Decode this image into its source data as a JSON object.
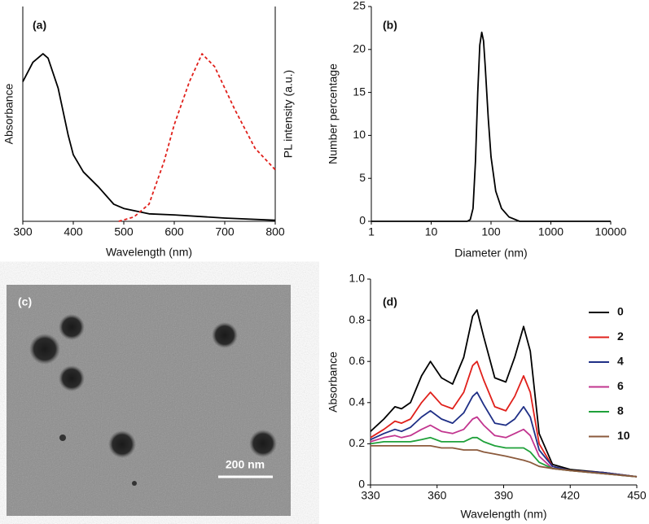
{
  "chart_data": [
    {
      "type": "line",
      "label": "(a)",
      "xlabel": "Wavelength (nm)",
      "ylabel": "Absorbance",
      "y2label": "PL intensity (a.u.)",
      "xlim": [
        300,
        800
      ],
      "xticks": [
        300,
        400,
        500,
        600,
        700,
        800
      ],
      "ylim": [
        0,
        1
      ],
      "y2lim": [
        0,
        1
      ],
      "series": [
        {
          "color": "#000000",
          "dash": "solid",
          "x": [
            300,
            320,
            340,
            350,
            370,
            390,
            400,
            420,
            450,
            480,
            500,
            550,
            600,
            700,
            800
          ],
          "values": [
            0.65,
            0.74,
            0.78,
            0.76,
            0.62,
            0.4,
            0.31,
            0.23,
            0.16,
            0.08,
            0.06,
            0.035,
            0.03,
            0.015,
            0.005
          ]
        },
        {
          "color": "#e0201b",
          "dash": "dashed",
          "axis": "y2",
          "x": [
            490,
            520,
            550,
            580,
            600,
            630,
            655,
            680,
            720,
            760,
            800
          ],
          "values": [
            0,
            0.02,
            0.08,
            0.28,
            0.45,
            0.65,
            0.78,
            0.72,
            0.52,
            0.34,
            0.24
          ]
        }
      ]
    },
    {
      "type": "line",
      "label": "(b)",
      "xlabel": "Diameter (nm)",
      "ylabel": "Number percentage",
      "xscale": "log",
      "xlim": [
        1,
        10000
      ],
      "xticks": [
        1,
        10,
        100,
        1000,
        10000
      ],
      "ylim": [
        0,
        25
      ],
      "yticks": [
        0,
        5,
        10,
        15,
        20,
        25
      ],
      "series": [
        {
          "color": "#000000",
          "dash": "solid",
          "x": [
            1,
            40,
            45,
            50,
            55,
            60,
            65,
            70,
            75,
            80,
            90,
            100,
            120,
            150,
            200,
            300,
            10000
          ],
          "values": [
            0,
            0,
            0.2,
            1.5,
            7,
            15,
            20.5,
            22,
            21,
            18,
            12,
            7.5,
            3.5,
            1.5,
            0.5,
            0,
            0
          ]
        }
      ]
    },
    {
      "type": "line",
      "label": "(d)",
      "xlabel": "Wavelength (nm)",
      "ylabel": "Absorbance",
      "legend": "right",
      "xlim": [
        330,
        450
      ],
      "xticks": [
        330,
        360,
        390,
        420,
        450
      ],
      "ylim": [
        0,
        1
      ],
      "yticks": [
        0,
        0.2,
        0.4,
        0.6,
        0.8,
        {
          "value": 1,
          "label": "1.0"
        }
      ],
      "x": [
        330,
        336,
        341,
        344,
        348,
        353,
        357,
        362,
        367,
        372,
        376,
        378,
        381,
        386,
        391,
        395,
        399,
        402,
        406,
        412,
        420,
        435,
        450
      ],
      "series": [
        {
          "name": "0",
          "color": "#000000",
          "values": [
            0.26,
            0.32,
            0.38,
            0.37,
            0.4,
            0.53,
            0.6,
            0.52,
            0.49,
            0.62,
            0.82,
            0.85,
            0.72,
            0.52,
            0.5,
            0.62,
            0.77,
            0.65,
            0.25,
            0.1,
            0.075,
            0.06,
            0.04
          ]
        },
        {
          "name": "2",
          "color": "#e0201b",
          "values": [
            0.23,
            0.27,
            0.31,
            0.3,
            0.32,
            0.4,
            0.45,
            0.39,
            0.37,
            0.45,
            0.58,
            0.6,
            0.51,
            0.38,
            0.36,
            0.43,
            0.53,
            0.45,
            0.2,
            0.09,
            0.07,
            0.06,
            0.04
          ]
        },
        {
          "name": "4",
          "color": "#1f2f86",
          "values": [
            0.22,
            0.25,
            0.27,
            0.26,
            0.28,
            0.33,
            0.36,
            0.32,
            0.3,
            0.35,
            0.43,
            0.45,
            0.39,
            0.3,
            0.29,
            0.32,
            0.38,
            0.33,
            0.17,
            0.09,
            0.07,
            0.06,
            0.04
          ]
        },
        {
          "name": "6",
          "color": "#c2358f",
          "values": [
            0.21,
            0.23,
            0.24,
            0.23,
            0.24,
            0.27,
            0.29,
            0.26,
            0.25,
            0.27,
            0.32,
            0.33,
            0.29,
            0.24,
            0.23,
            0.25,
            0.27,
            0.24,
            0.14,
            0.08,
            0.07,
            0.055,
            0.04
          ]
        },
        {
          "name": "8",
          "color": "#1fa13a",
          "values": [
            0.2,
            0.21,
            0.21,
            0.21,
            0.21,
            0.22,
            0.23,
            0.21,
            0.21,
            0.21,
            0.23,
            0.23,
            0.21,
            0.19,
            0.18,
            0.18,
            0.18,
            0.16,
            0.11,
            0.08,
            0.07,
            0.055,
            0.04
          ]
        },
        {
          "name": "10",
          "color": "#8b5a3c",
          "values": [
            0.19,
            0.19,
            0.19,
            0.19,
            0.19,
            0.19,
            0.19,
            0.18,
            0.18,
            0.17,
            0.17,
            0.17,
            0.16,
            0.15,
            0.14,
            0.13,
            0.12,
            0.11,
            0.09,
            0.08,
            0.07,
            0.055,
            0.04
          ]
        }
      ]
    }
  ],
  "image_panel": {
    "label": "(c)",
    "scale_bar": "200 nm"
  }
}
